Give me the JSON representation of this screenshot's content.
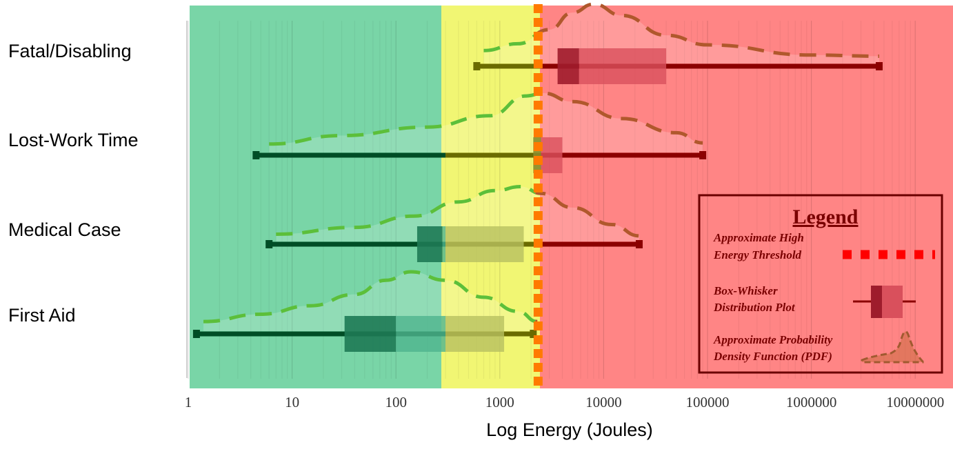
{
  "chart_data": {
    "type": "box",
    "xlabel": "Log Energy (Joules)",
    "xscale": "log",
    "xlim": [
      1,
      10000000
    ],
    "x_ticks": [
      "1",
      "10",
      "100",
      "1000",
      "10000",
      "100000",
      "1000000",
      "10000000"
    ],
    "categories": [
      "Fatal/Disabling",
      "Lost-Work Time",
      "Medical Case",
      "First Aid"
    ],
    "zones": [
      {
        "from": 1,
        "to": 300,
        "color": "#4cc78a"
      },
      {
        "from": 300,
        "to": 2500,
        "color": "#eef55a"
      },
      {
        "from": 2500,
        "to": 10000000,
        "color": "#ff5c5c"
      }
    ],
    "high_energy_threshold": 2200,
    "series": [
      {
        "category": "Fatal/Disabling",
        "min": 600,
        "q1": 3600,
        "median": 5800,
        "q3": 40000,
        "max": 4500000,
        "pdf": [
          [
            700,
            0.18
          ],
          [
            1500,
            0.3
          ],
          [
            3000,
            0.55
          ],
          [
            5000,
            0.85
          ],
          [
            8000,
            1.0
          ],
          [
            15000,
            0.8
          ],
          [
            40000,
            0.45
          ],
          [
            100000,
            0.28
          ],
          [
            1000000,
            0.1
          ],
          [
            4500000,
            0.08
          ]
        ]
      },
      {
        "category": "Lost-Work Time",
        "min": 4.5,
        "q1": 2100,
        "median": 2500,
        "q3": 4000,
        "max": 90000,
        "pdf": [
          [
            6,
            0.1
          ],
          [
            30,
            0.25
          ],
          [
            200,
            0.4
          ],
          [
            800,
            0.6
          ],
          [
            1800,
            0.95
          ],
          [
            2600,
            1.0
          ],
          [
            5000,
            0.85
          ],
          [
            15000,
            0.55
          ],
          [
            50000,
            0.3
          ],
          [
            90000,
            0.12
          ]
        ]
      },
      {
        "category": "Medical Case",
        "min": 6,
        "q1": 160,
        "median": 280,
        "q3": 1700,
        "max": 22000,
        "pdf": [
          [
            7,
            0.08
          ],
          [
            40,
            0.2
          ],
          [
            150,
            0.4
          ],
          [
            400,
            0.65
          ],
          [
            900,
            0.85
          ],
          [
            1600,
            0.92
          ],
          [
            2500,
            0.8
          ],
          [
            5000,
            0.55
          ],
          [
            12000,
            0.25
          ],
          [
            22000,
            0.05
          ]
        ]
      },
      {
        "category": "First Aid",
        "min": 1.2,
        "q1": 32,
        "median": 100,
        "q3": 1100,
        "max": 2100,
        "pdf": [
          [
            1.4,
            0.12
          ],
          [
            5,
            0.25
          ],
          [
            15,
            0.4
          ],
          [
            40,
            0.6
          ],
          [
            80,
            0.85
          ],
          [
            140,
            1.0
          ],
          [
            300,
            0.85
          ],
          [
            700,
            0.55
          ],
          [
            1500,
            0.3
          ],
          [
            2300,
            0.12
          ]
        ]
      }
    ],
    "legend": {
      "title": "Legend",
      "items": [
        {
          "line1": "Approximate High",
          "line2": "Energy Threshold"
        },
        {
          "line1": "Box-Whisker",
          "line2": "Distribution Plot"
        },
        {
          "line1": "Approximate Probability",
          "line2": "Density Function (PDF)"
        }
      ]
    }
  }
}
